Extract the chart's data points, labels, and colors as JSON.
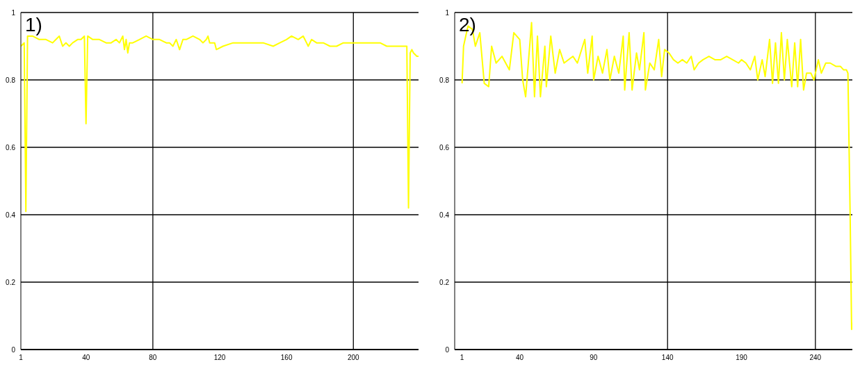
{
  "chart_data": [
    {
      "type": "line",
      "title": "1)",
      "xlim": [
        1,
        239
      ],
      "xticks": [
        1,
        40,
        80,
        120,
        160,
        200
      ],
      "ylim": [
        0,
        1
      ],
      "yticks": [
        0,
        0.2,
        0.4,
        0.6,
        0.8,
        1
      ],
      "grid": "y",
      "marker": "none",
      "line_style": "solid",
      "ref_lines": [
        {
          "axis": "x",
          "value": 80,
          "color": "#000000"
        },
        {
          "axis": "x",
          "value": 200,
          "color": "#000000"
        }
      ],
      "series": [
        {
          "color": "#ffff00",
          "x": [
            1,
            3,
            4,
            5,
            8,
            12,
            16,
            20,
            22,
            24,
            26,
            28,
            30,
            32,
            35,
            37,
            39,
            40,
            41,
            44,
            48,
            52,
            55,
            58,
            60,
            62,
            63,
            64,
            65,
            66,
            68,
            72,
            76,
            80,
            84,
            88,
            90,
            92,
            94,
            96,
            98,
            100,
            104,
            108,
            110,
            112,
            113,
            114,
            117,
            118,
            122,
            128,
            134,
            140,
            146,
            152,
            156,
            160,
            163,
            167,
            170,
            172,
            173,
            175,
            178,
            182,
            186,
            190,
            194,
            198,
            205,
            212,
            216,
            220,
            225,
            228,
            230,
            232,
            233,
            234,
            235,
            236,
            238,
            239
          ],
          "values": [
            0.9,
            0.91,
            0.41,
            0.93,
            0.93,
            0.92,
            0.92,
            0.91,
            0.92,
            0.93,
            0.9,
            0.91,
            0.9,
            0.91,
            0.92,
            0.92,
            0.93,
            0.67,
            0.93,
            0.92,
            0.92,
            0.91,
            0.91,
            0.92,
            0.91,
            0.93,
            0.89,
            0.92,
            0.88,
            0.91,
            0.91,
            0.92,
            0.93,
            0.92,
            0.92,
            0.91,
            0.91,
            0.9,
            0.92,
            0.89,
            0.92,
            0.92,
            0.93,
            0.92,
            0.91,
            0.92,
            0.93,
            0.91,
            0.91,
            0.89,
            0.9,
            0.91,
            0.91,
            0.91,
            0.91,
            0.9,
            0.91,
            0.92,
            0.93,
            0.92,
            0.93,
            0.91,
            0.9,
            0.92,
            0.91,
            0.91,
            0.9,
            0.9,
            0.91,
            0.91,
            0.91,
            0.91,
            0.91,
            0.9,
            0.9,
            0.9,
            0.9,
            0.9,
            0.42,
            0.88,
            0.89,
            0.88,
            0.87,
            0.87
          ]
        }
      ]
    },
    {
      "type": "line",
      "title": "2)",
      "xlim": [
        -4,
        265
      ],
      "xticks": [
        1,
        40,
        90,
        140,
        190,
        240
      ],
      "ylim": [
        0,
        1
      ],
      "yticks": [
        0,
        0.2,
        0.4,
        0.6,
        0.8,
        1
      ],
      "grid": "y",
      "marker": "none",
      "line_style": "solid",
      "ref_lines": [
        {
          "axis": "x",
          "value": 140,
          "color": "#000000"
        },
        {
          "axis": "x",
          "value": 240,
          "color": "#000000"
        }
      ],
      "series": [
        {
          "color": "#ffff00",
          "x": [
            1,
            2,
            5,
            8,
            10,
            13,
            16,
            19,
            21,
            24,
            28,
            33,
            36,
            40,
            42,
            44,
            48,
            50,
            52,
            54,
            57,
            58,
            61,
            64,
            67,
            70,
            76,
            79,
            84,
            86,
            89,
            90,
            93,
            96,
            99,
            101,
            104,
            107,
            110,
            111,
            114,
            116,
            119,
            121,
            124,
            125,
            128,
            131,
            134,
            136,
            138,
            141,
            144,
            147,
            150,
            153,
            156,
            158,
            161,
            164,
            168,
            172,
            176,
            180,
            184,
            188,
            190,
            193,
            196,
            199,
            201,
            204,
            206,
            209,
            211,
            213,
            215,
            217,
            219,
            221,
            224,
            226,
            228,
            230,
            232,
            234,
            237,
            239,
            242,
            244,
            247,
            250,
            254,
            257,
            259,
            261,
            262,
            263.5,
            264.5,
            265
          ],
          "values": [
            0.79,
            0.9,
            0.96,
            0.95,
            0.9,
            0.94,
            0.79,
            0.78,
            0.9,
            0.85,
            0.87,
            0.83,
            0.94,
            0.92,
            0.8,
            0.75,
            0.97,
            0.75,
            0.93,
            0.75,
            0.9,
            0.78,
            0.93,
            0.82,
            0.89,
            0.85,
            0.87,
            0.85,
            0.92,
            0.82,
            0.93,
            0.8,
            0.87,
            0.82,
            0.89,
            0.8,
            0.87,
            0.82,
            0.93,
            0.77,
            0.94,
            0.77,
            0.88,
            0.83,
            0.94,
            0.77,
            0.85,
            0.83,
            0.92,
            0.81,
            0.89,
            0.88,
            0.86,
            0.85,
            0.86,
            0.85,
            0.87,
            0.83,
            0.85,
            0.86,
            0.87,
            0.86,
            0.86,
            0.87,
            0.86,
            0.85,
            0.86,
            0.85,
            0.83,
            0.87,
            0.8,
            0.86,
            0.81,
            0.92,
            0.79,
            0.91,
            0.79,
            0.94,
            0.8,
            0.92,
            0.78,
            0.91,
            0.78,
            0.92,
            0.77,
            0.82,
            0.82,
            0.8,
            0.86,
            0.82,
            0.85,
            0.85,
            0.84,
            0.84,
            0.83,
            0.83,
            0.82,
            0.4,
            0.06,
            0.08
          ]
        }
      ]
    }
  ]
}
